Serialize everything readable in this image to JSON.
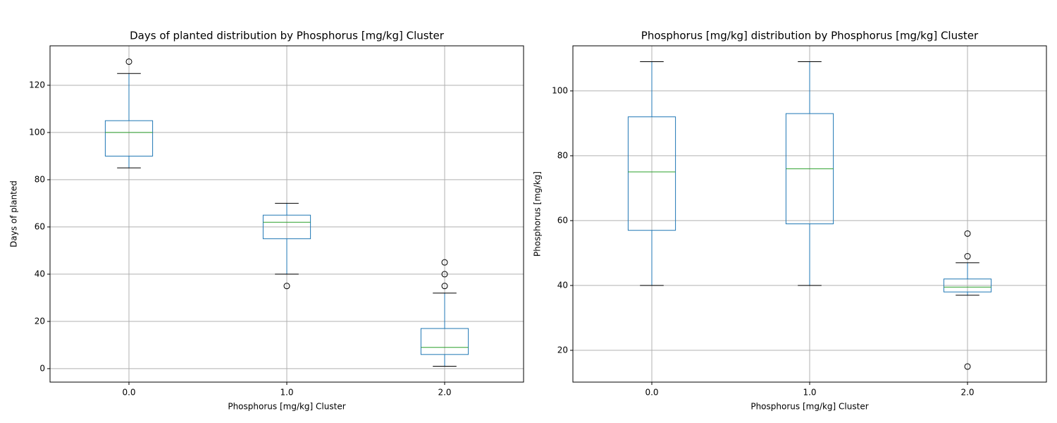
{
  "chart_data": [
    {
      "type": "box",
      "title": "Days of planted distribution by Phosphorus [mg/kg] Cluster",
      "x_label": "Phosphorus [mg/kg] Cluster",
      "y_label": "Days of planted",
      "categories": [
        "0.0",
        "1.0",
        "2.0"
      ],
      "boxes": [
        {
          "whislo": 85,
          "q1": 90,
          "med": 100,
          "q3": 105,
          "whishi": 125,
          "fliers": [
            130
          ]
        },
        {
          "whislo": 40,
          "q1": 55,
          "med": 62,
          "q3": 65,
          "whishi": 70,
          "fliers": [
            35
          ]
        },
        {
          "whislo": 1,
          "q1": 6,
          "med": 9,
          "q3": 17,
          "whishi": 32,
          "fliers": [
            35,
            40,
            45
          ]
        }
      ],
      "color": "#1f77b4",
      "median_color": "#2ca02c",
      "ylim": [
        -5.7,
        136.7
      ],
      "yticks": [
        0,
        20,
        40,
        60,
        80,
        100,
        120
      ],
      "grid": true
    },
    {
      "type": "box",
      "title": "Phosphorus [mg/kg] distribution by Phosphorus [mg/kg] Cluster",
      "x_label": "Phosphorus [mg/kg] Cluster",
      "y_label": "Phosphorus [mg/kg]",
      "categories": [
        "0.0",
        "1.0",
        "2.0"
      ],
      "boxes": [
        {
          "whislo": 40,
          "q1": 57,
          "med": 75,
          "q3": 92,
          "whishi": 109,
          "fliers": []
        },
        {
          "whislo": 40,
          "q1": 59,
          "med": 76,
          "q3": 93,
          "whishi": 109,
          "fliers": []
        },
        {
          "whislo": 37,
          "q1": 38,
          "med": 39.5,
          "q3": 42,
          "whishi": 47,
          "fliers": [
            15,
            49,
            56
          ]
        }
      ],
      "color": "#1f77b4",
      "median_color": "#2ca02c",
      "ylim": [
        10.2,
        113.9
      ],
      "yticks": [
        20,
        40,
        60,
        80,
        100
      ],
      "grid": true
    }
  ]
}
